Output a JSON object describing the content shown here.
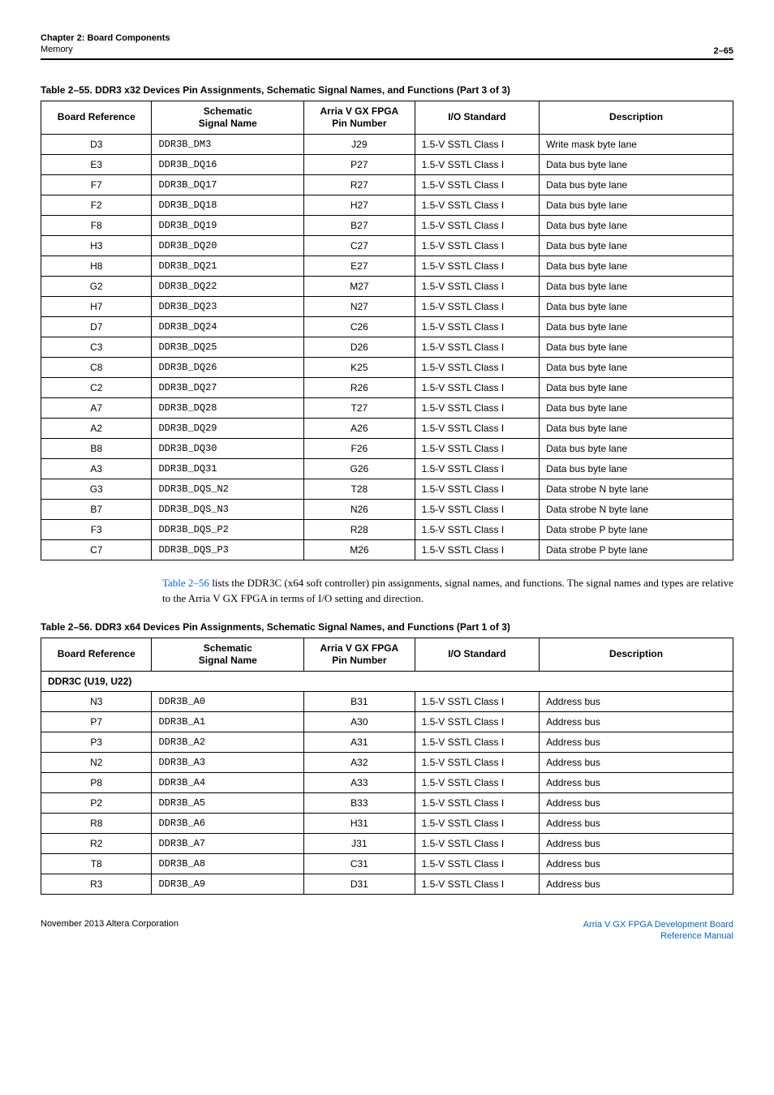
{
  "header": {
    "chapterLine": "Chapter 2: Board Components",
    "subLine": "Memory",
    "pageNum": "2–65"
  },
  "table1": {
    "title": "Table 2–55.  DDR3 x32 Devices Pin Assignments, Schematic Signal Names, and Functions  (Part 3 of 3)",
    "cols": [
      "Board Reference",
      "Schematic\nSignal Name",
      "Arria V GX FPGA\nPin Number",
      "I/O Standard",
      "Description"
    ],
    "rows": [
      [
        "D3",
        "DDR3B_DM3",
        "J29",
        "1.5-V SSTL Class I",
        "Write mask byte lane"
      ],
      [
        "E3",
        "DDR3B_DQ16",
        "P27",
        "1.5-V SSTL Class I",
        "Data bus byte lane"
      ],
      [
        "F7",
        "DDR3B_DQ17",
        "R27",
        "1.5-V SSTL Class I",
        "Data bus byte lane"
      ],
      [
        "F2",
        "DDR3B_DQ18",
        "H27",
        "1.5-V SSTL Class I",
        "Data bus byte lane"
      ],
      [
        "F8",
        "DDR3B_DQ19",
        "B27",
        "1.5-V SSTL Class I",
        "Data bus byte lane"
      ],
      [
        "H3",
        "DDR3B_DQ20",
        "C27",
        "1.5-V SSTL Class I",
        "Data bus byte lane"
      ],
      [
        "H8",
        "DDR3B_DQ21",
        "E27",
        "1.5-V SSTL Class I",
        "Data bus byte lane"
      ],
      [
        "G2",
        "DDR3B_DQ22",
        "M27",
        "1.5-V SSTL Class I",
        "Data bus byte lane"
      ],
      [
        "H7",
        "DDR3B_DQ23",
        "N27",
        "1.5-V SSTL Class I",
        "Data bus byte lane"
      ],
      [
        "D7",
        "DDR3B_DQ24",
        "C26",
        "1.5-V SSTL Class I",
        "Data bus byte lane"
      ],
      [
        "C3",
        "DDR3B_DQ25",
        "D26",
        "1.5-V SSTL Class I",
        "Data bus byte lane"
      ],
      [
        "C8",
        "DDR3B_DQ26",
        "K25",
        "1.5-V SSTL Class I",
        "Data bus byte lane"
      ],
      [
        "C2",
        "DDR3B_DQ27",
        "R26",
        "1.5-V SSTL Class I",
        "Data bus byte lane"
      ],
      [
        "A7",
        "DDR3B_DQ28",
        "T27",
        "1.5-V SSTL Class I",
        "Data bus byte lane"
      ],
      [
        "A2",
        "DDR3B_DQ29",
        "A26",
        "1.5-V SSTL Class I",
        "Data bus byte lane"
      ],
      [
        "B8",
        "DDR3B_DQ30",
        "F26",
        "1.5-V SSTL Class I",
        "Data bus byte lane"
      ],
      [
        "A3",
        "DDR3B_DQ31",
        "G26",
        "1.5-V SSTL Class I",
        "Data bus byte lane"
      ],
      [
        "G3",
        "DDR3B_DQS_N2",
        "T28",
        "1.5-V SSTL Class I",
        "Data strobe N byte lane"
      ],
      [
        "B7",
        "DDR3B_DQS_N3",
        "N26",
        "1.5-V SSTL Class I",
        "Data strobe N byte lane"
      ],
      [
        "F3",
        "DDR3B_DQS_P2",
        "R28",
        "1.5-V SSTL Class I",
        "Data strobe P byte lane"
      ],
      [
        "C7",
        "DDR3B_DQS_P3",
        "M26",
        "1.5-V SSTL Class I",
        "Data strobe P byte lane"
      ]
    ]
  },
  "midText": {
    "link": "Table 2–56",
    "rest": " lists the DDR3C (x64 soft controller) pin assignments, signal names, and functions. The signal names and types are relative to the Arria V GX FPGA in terms of I/O setting and direction."
  },
  "table2": {
    "title": "Table 2–56.  DDR3 x64 Devices Pin Assignments, Schematic Signal Names, and Functions  (Part 1 of 3)",
    "cols": [
      "Board Reference",
      "Schematic\nSignal Name",
      "Arria V GX FPGA\nPin Number",
      "I/O Standard",
      "Description"
    ],
    "subheader": "DDR3C (U19, U22)",
    "rows": [
      [
        "N3",
        "DDR3B_A0",
        "B31",
        "1.5-V SSTL Class I",
        "Address bus"
      ],
      [
        "P7",
        "DDR3B_A1",
        "A30",
        "1.5-V SSTL Class I",
        "Address bus"
      ],
      [
        "P3",
        "DDR3B_A2",
        "A31",
        "1.5-V SSTL Class I",
        "Address bus"
      ],
      [
        "N2",
        "DDR3B_A3",
        "A32",
        "1.5-V SSTL Class I",
        "Address bus"
      ],
      [
        "P8",
        "DDR3B_A4",
        "A33",
        "1.5-V SSTL Class I",
        "Address bus"
      ],
      [
        "P2",
        "DDR3B_A5",
        "B33",
        "1.5-V SSTL Class I",
        "Address bus"
      ],
      [
        "R8",
        "DDR3B_A6",
        "H31",
        "1.5-V SSTL Class I",
        "Address bus"
      ],
      [
        "R2",
        "DDR3B_A7",
        "J31",
        "1.5-V SSTL Class I",
        "Address bus"
      ],
      [
        "T8",
        "DDR3B_A8",
        "C31",
        "1.5-V SSTL Class I",
        "Address bus"
      ],
      [
        "R3",
        "DDR3B_A9",
        "D31",
        "1.5-V SSTL Class I",
        "Address bus"
      ]
    ]
  },
  "footer": {
    "left": "November 2013   Altera Corporation",
    "right1": "Arria V GX FPGA Development Board",
    "right2": "Reference Manual"
  }
}
